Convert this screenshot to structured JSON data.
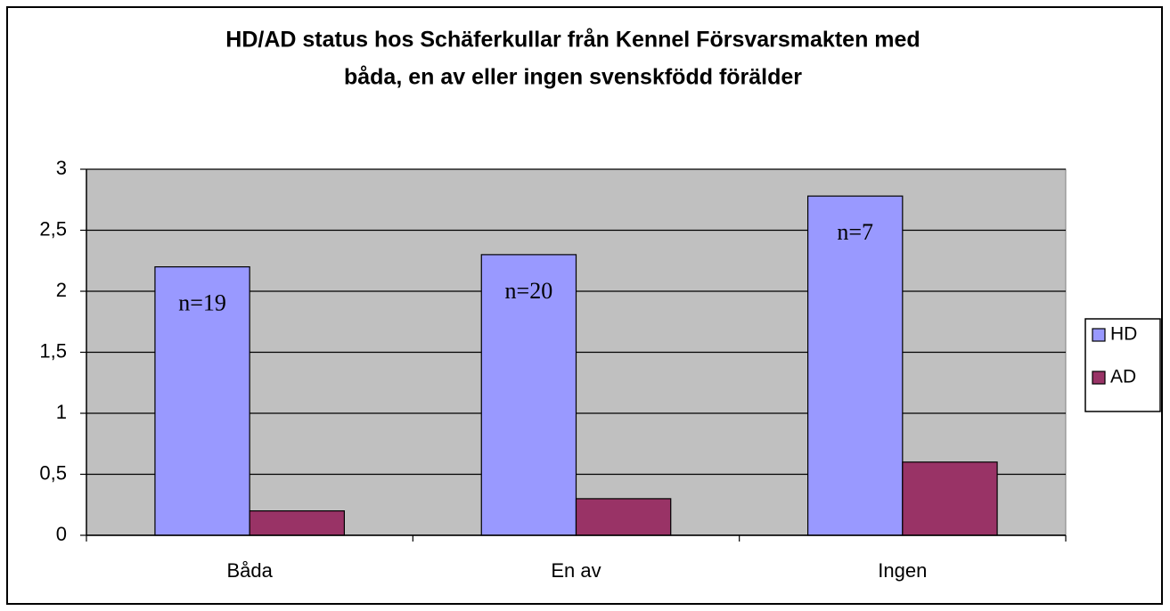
{
  "chart_data": {
    "type": "bar",
    "title": [
      "HD/AD status hos Schäferkullar från Kennel Försvarsmakten med",
      "båda, en av eller ingen svenskfödd förälder"
    ],
    "categories": [
      "Båda",
      "En av",
      "Ingen"
    ],
    "series": [
      {
        "name": "HD",
        "color": "#9999ff",
        "values": [
          2.2,
          2.3,
          2.78
        ]
      },
      {
        "name": "AD",
        "color": "#993366",
        "values": [
          0.2,
          0.3,
          0.6
        ]
      }
    ],
    "annotations": [
      "n=19",
      "n=20",
      "n=7"
    ],
    "ylim": [
      0,
      3
    ],
    "yticks": [
      0,
      {
        "value": 0.5,
        "label": "0,5"
      },
      1,
      {
        "value": 1.5,
        "label": "1,5"
      },
      2,
      {
        "value": 2.5,
        "label": "2,5"
      },
      3
    ],
    "grid": true,
    "legend": "right",
    "plot_background": "#c0c0c0"
  }
}
